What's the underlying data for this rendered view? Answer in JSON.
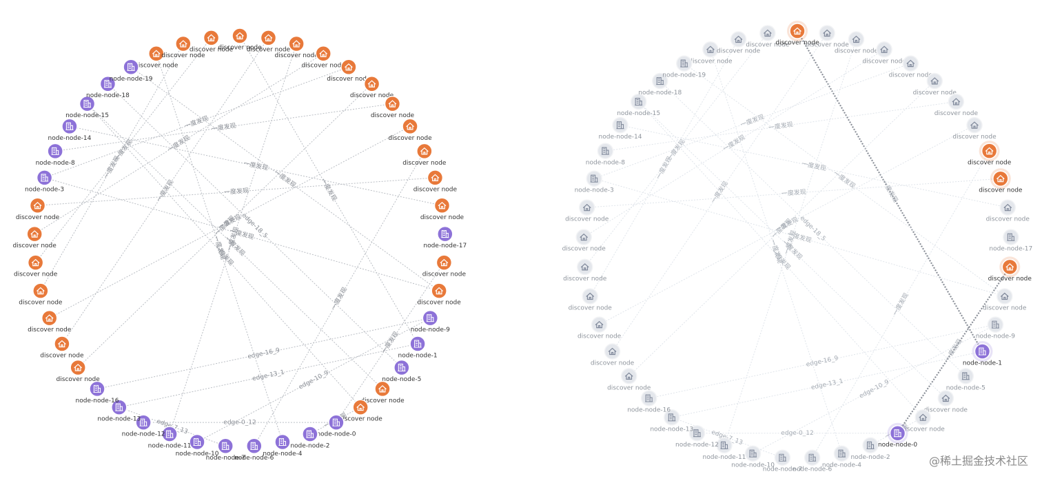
{
  "graph": {
    "nodes": [
      {
        "label": "discover node",
        "kind": "discover"
      },
      {
        "label": "discover node",
        "kind": "discover"
      },
      {
        "label": "discover node",
        "kind": "discover"
      },
      {
        "label": "discover node",
        "kind": "discover"
      },
      {
        "label": "discover node",
        "kind": "discover"
      },
      {
        "label": "discover node",
        "kind": "discover"
      },
      {
        "label": "discover node",
        "kind": "discover"
      },
      {
        "label": "discover node",
        "kind": "discover"
      },
      {
        "label": "discover node",
        "kind": "discover"
      },
      {
        "label": "discover node",
        "kind": "discover"
      },
      {
        "label": "discover node",
        "kind": "discover"
      },
      {
        "label": "discover node",
        "kind": "discover"
      },
      {
        "label": "discover node",
        "kind": "discover"
      },
      {
        "label": "discover node",
        "kind": "discover"
      },
      {
        "label": "node-node-17",
        "kind": "entity"
      },
      {
        "label": "discover node",
        "kind": "discover"
      },
      {
        "label": "discover node",
        "kind": "discover"
      },
      {
        "label": "node-node-9",
        "kind": "entity"
      },
      {
        "label": "node-node-1",
        "kind": "entity"
      },
      {
        "label": "node-node-5",
        "kind": "entity"
      },
      {
        "label": "discover node",
        "kind": "discover"
      },
      {
        "label": "discover node",
        "kind": "discover"
      },
      {
        "label": "node-node-0",
        "kind": "entity"
      },
      {
        "label": "node-node-2",
        "kind": "entity"
      },
      {
        "label": "node-node-4",
        "kind": "entity"
      },
      {
        "label": "node-node-6",
        "kind": "entity"
      },
      {
        "label": "node-node-7",
        "kind": "entity"
      },
      {
        "label": "node-node-10",
        "kind": "entity"
      },
      {
        "label": "node-node-11",
        "kind": "entity"
      },
      {
        "label": "node-node-12",
        "kind": "entity"
      },
      {
        "label": "node-node-13",
        "kind": "entity"
      },
      {
        "label": "node-node-16",
        "kind": "entity"
      },
      {
        "label": "discover node",
        "kind": "discover"
      },
      {
        "label": "discover node",
        "kind": "discover"
      },
      {
        "label": "discover node",
        "kind": "discover"
      },
      {
        "label": "discover node",
        "kind": "discover"
      },
      {
        "label": "discover node",
        "kind": "discover"
      },
      {
        "label": "discover node",
        "kind": "discover"
      },
      {
        "label": "discover node",
        "kind": "discover"
      },
      {
        "label": "node-node-3",
        "kind": "entity"
      },
      {
        "label": "node-node-8",
        "kind": "entity"
      },
      {
        "label": "node-node-14",
        "kind": "entity"
      },
      {
        "label": "node-node-15",
        "kind": "entity"
      },
      {
        "label": "node-node-18",
        "kind": "entity"
      },
      {
        "label": "node-node-19",
        "kind": "entity"
      }
    ],
    "edges": [
      {
        "source": 31,
        "target": 17,
        "label": "edge-16_9"
      },
      {
        "source": 30,
        "target": 18,
        "label": "edge-13_1"
      },
      {
        "source": 27,
        "target": 17,
        "label": "edge-10_9"
      },
      {
        "source": 22,
        "target": 29,
        "label": "edge-0_12"
      },
      {
        "source": 26,
        "target": 30,
        "label": "edge-7_13"
      },
      {
        "source": 43,
        "target": 19,
        "label": "edge-18_5"
      },
      {
        "source": 3,
        "target": 18,
        "label": "一度发现"
      },
      {
        "source": 15,
        "target": 22,
        "label": "一度发现"
      },
      {
        "source": 0,
        "target": 24,
        "label": "一度发现"
      },
      {
        "source": 1,
        "target": 35,
        "label": "一度发现"
      },
      {
        "source": 2,
        "target": 36,
        "label": "一度发现"
      },
      {
        "source": 4,
        "target": 33,
        "label": "一度发现"
      },
      {
        "source": 5,
        "target": 28,
        "label": "一度发现"
      },
      {
        "source": 6,
        "target": 37,
        "label": "一度发现"
      },
      {
        "source": 7,
        "target": 39,
        "label": "一度发现"
      },
      {
        "source": 8,
        "target": 32,
        "label": "一度发现"
      },
      {
        "source": 9,
        "target": 40,
        "label": "一度发现"
      },
      {
        "source": 10,
        "target": 34,
        "label": "一度发现"
      },
      {
        "source": 11,
        "target": 25,
        "label": "一度发现"
      },
      {
        "source": 12,
        "target": 38,
        "label": "一度发现"
      },
      {
        "source": 13,
        "target": 41,
        "label": "一度发现"
      },
      {
        "source": 16,
        "target": 44,
        "label": "一度发现"
      },
      {
        "source": 20,
        "target": 42,
        "label": "一度发现"
      },
      {
        "source": 21,
        "target": 23,
        "label": "一度发现"
      },
      {
        "source": 39,
        "target": 16,
        "label": "一度发现"
      },
      {
        "source": 42,
        "target": 21,
        "label": "一度发现"
      }
    ]
  },
  "views": [
    {
      "mode": "normal"
    },
    {
      "mode": "focus",
      "highlighted": [
        3,
        11,
        12,
        15,
        18,
        22
      ]
    }
  ],
  "colors": {
    "discover": "#e8793a",
    "entity": "#8d72d8"
  },
  "watermark": "@稀土掘金技术社区"
}
